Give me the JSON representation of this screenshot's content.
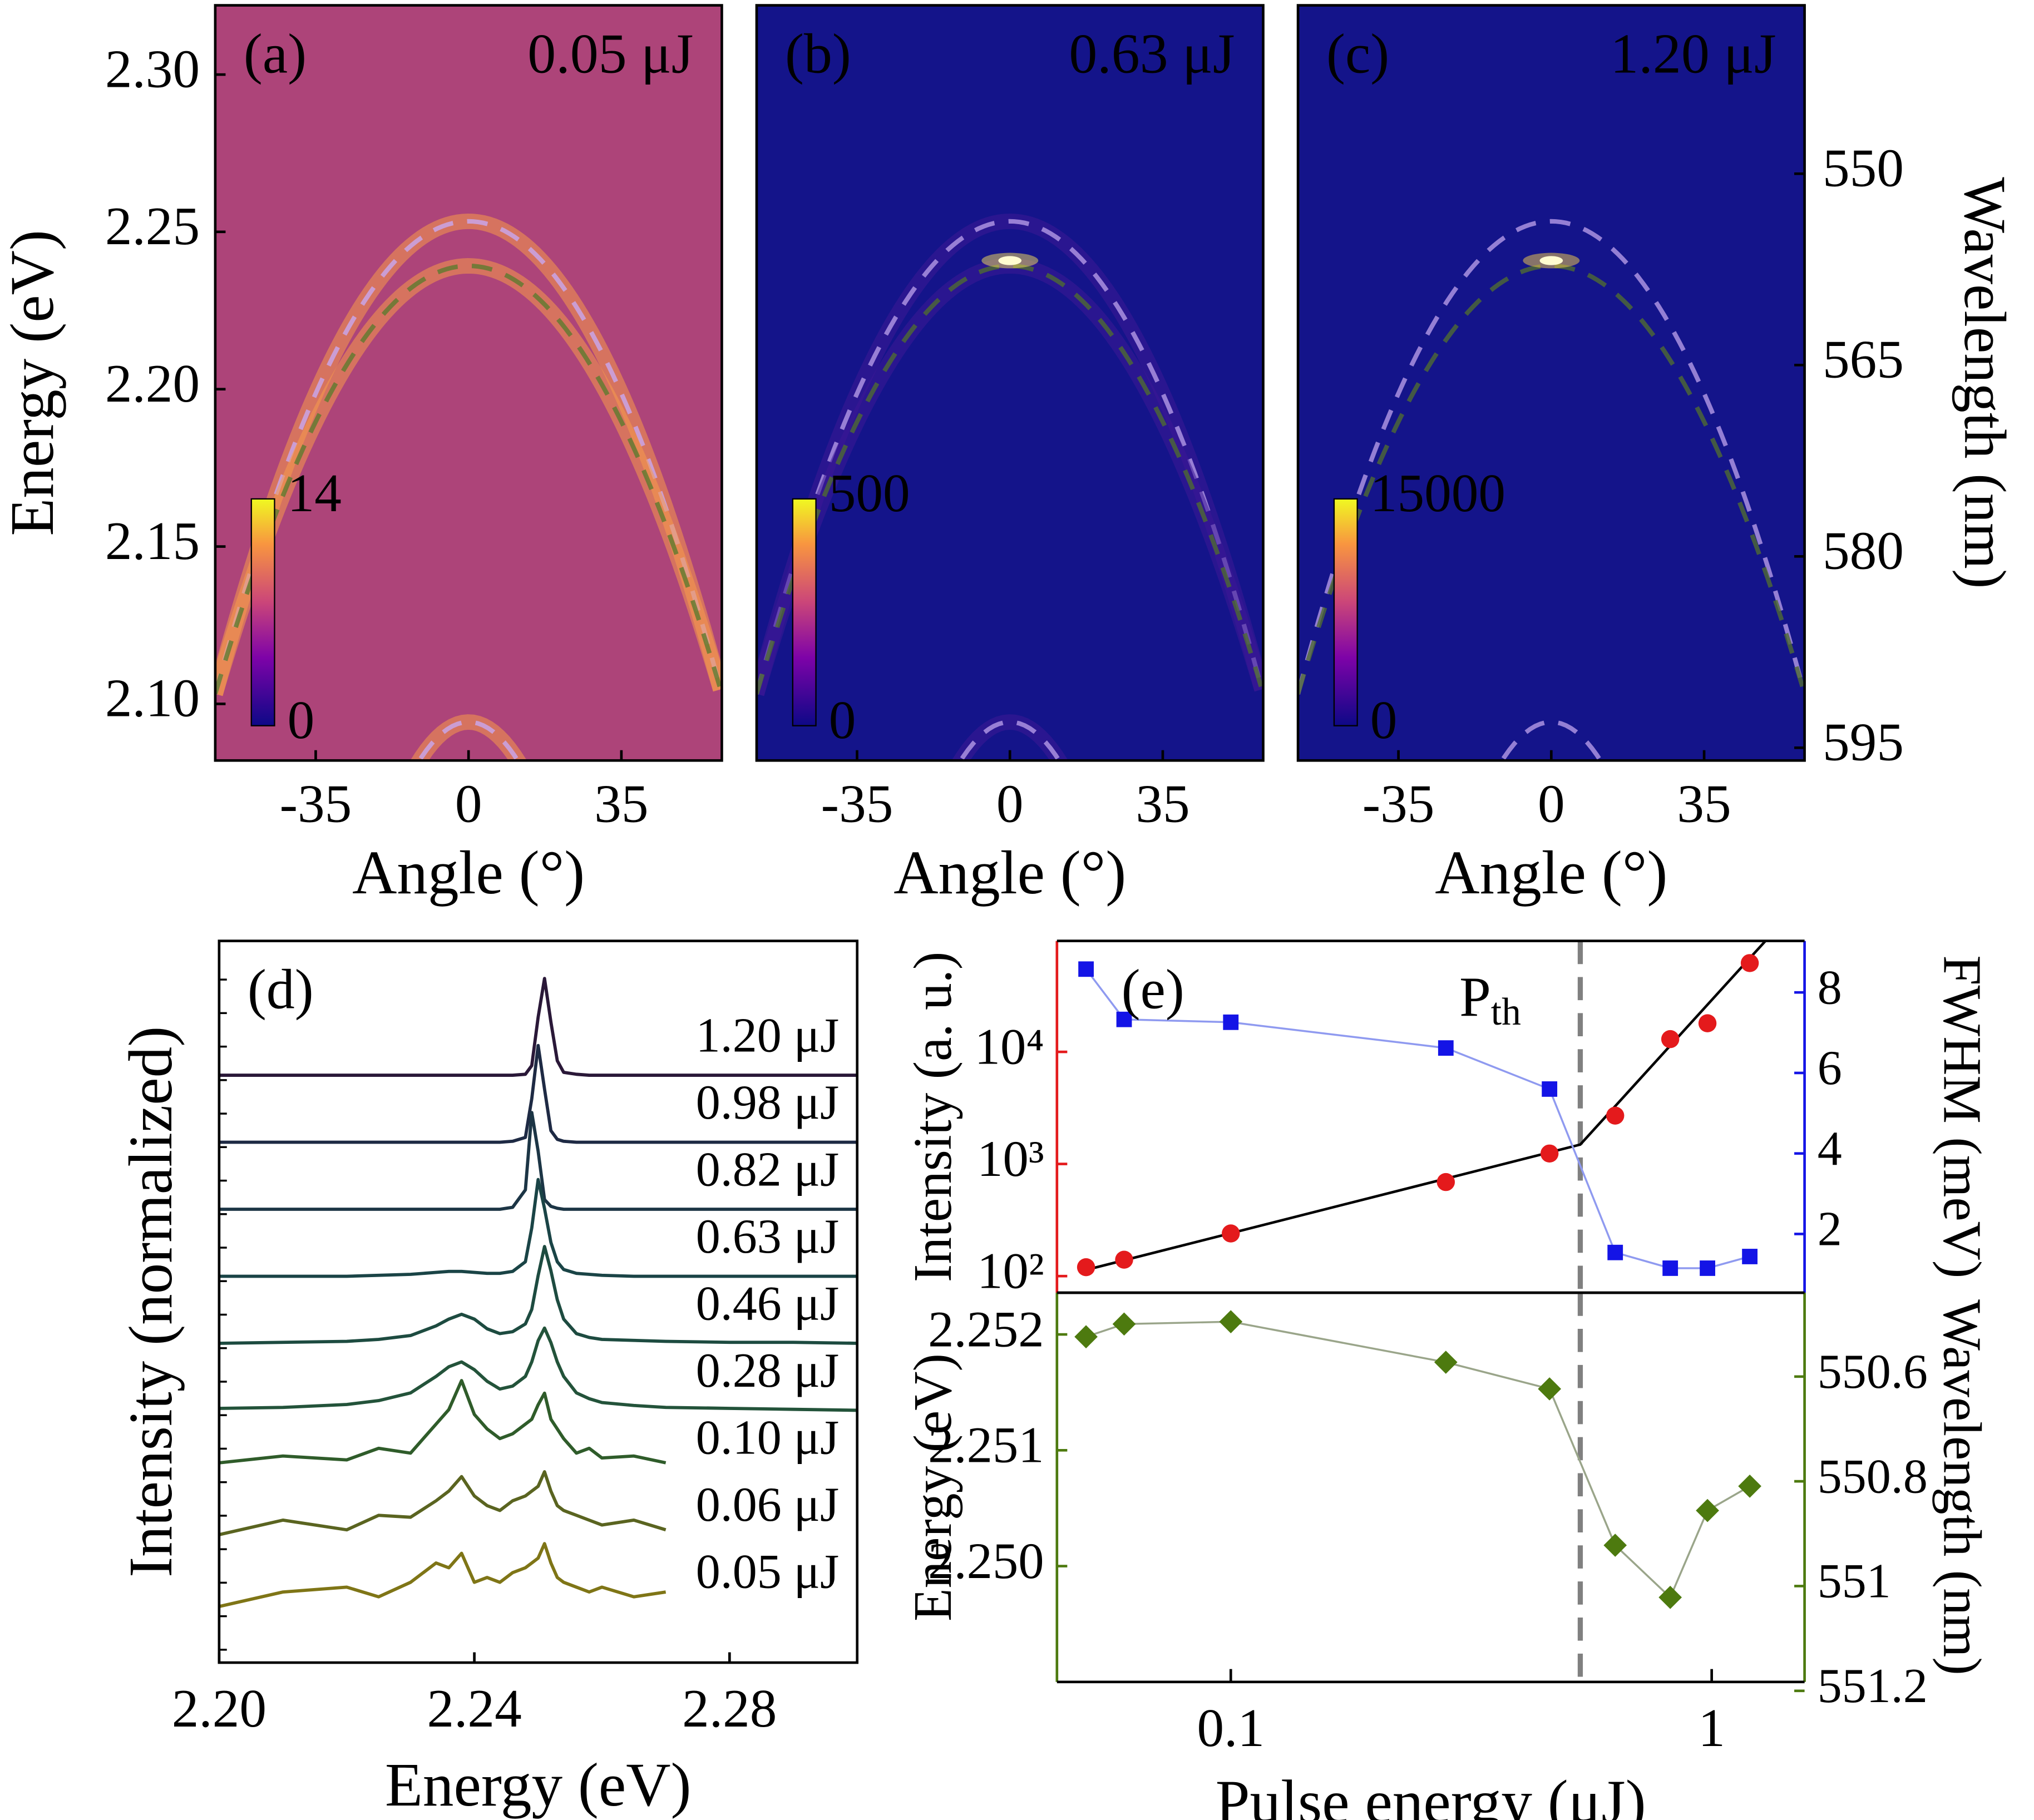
{
  "chart_data": [
    {
      "type": "heatmap",
      "panel_label": "(a)",
      "annotation": "0.05 μJ",
      "xlabel": "Angle (°)",
      "ylabel": "Energy (eV)",
      "xlim": [
        -58,
        58
      ],
      "xticks": [
        -35,
        0,
        35
      ],
      "ylim": [
        2.082,
        2.322
      ],
      "yticks": [
        {
          "value": 2.1,
          "label": "2.10"
        },
        {
          "value": 2.15,
          "label": "2.15"
        },
        {
          "value": 2.2,
          "label": "2.20"
        },
        {
          "value": 2.25,
          "label": "2.25"
        },
        {
          "value": 2.3,
          "label": "2.30"
        }
      ],
      "background": "#ad4479",
      "band_color": "#f79a4a",
      "curve_colors": [
        "#c8a8f0",
        "#5c7a2e"
      ],
      "colorbar": {
        "ticks": [
          0,
          14
        ]
      }
    },
    {
      "type": "heatmap",
      "panel_label": "(b)",
      "annotation": "0.63 μJ",
      "xlabel": "Angle (°)",
      "xlim": [
        -58,
        58
      ],
      "xticks": [
        -35,
        0,
        35
      ],
      "ylim": [
        2.082,
        2.322
      ],
      "background": "#14148a",
      "band_color": "#3c1896",
      "spot_color": "#f9e25a",
      "curve_colors": [
        "#b49ae6",
        "#4f6a32"
      ],
      "colorbar": {
        "ticks": [
          0,
          500
        ]
      }
    },
    {
      "type": "heatmap",
      "panel_label": "(c)",
      "annotation": "1.20 μJ",
      "xlabel": "Angle (°)",
      "y2label": "Wavelength (nm)",
      "xlim": [
        -58,
        58
      ],
      "xticks": [
        -35,
        0,
        35
      ],
      "ylim": [
        2.082,
        2.322
      ],
      "y2lim": [
        596.0,
        536.8
      ],
      "y2ticks": [
        550,
        565,
        580,
        595
      ],
      "background": "#14148a",
      "spot_color": "#f9d24a",
      "curve_colors": [
        "#b49ae6",
        "#4f6a32"
      ],
      "colorbar": {
        "ticks": [
          0,
          15000
        ]
      }
    },
    {
      "type": "line",
      "panel_label": "(d)",
      "xlabel": "Energy (eV)",
      "ylabel": "Intensity (normalized)",
      "xlim": [
        2.2,
        2.3
      ],
      "xticks": [
        {
          "value": 2.2,
          "label": "2.20"
        },
        {
          "value": 2.24,
          "label": "2.24"
        },
        {
          "value": 2.28,
          "label": "2.28"
        }
      ],
      "ylim": [
        -0.53,
        6.93
      ],
      "x": [
        2.2,
        2.21,
        2.22,
        2.225,
        2.23,
        2.234,
        2.236,
        2.238,
        2.24,
        2.242,
        2.244,
        2.246,
        2.248,
        2.249,
        2.25,
        2.251,
        2.252,
        2.253,
        2.254,
        2.256,
        2.258,
        2.26,
        2.265,
        2.27,
        2.28,
        2.29,
        2.3
      ],
      "series": [
        {
          "name": "1.20 μJ",
          "color": "#2a1838",
          "values": [
            0,
            0,
            0,
            0,
            0,
            0,
            0,
            0,
            0,
            0,
            0,
            0,
            0.01,
            0.1,
            0.6,
            1.0,
            0.55,
            0.15,
            0.03,
            0.01,
            0,
            0,
            0,
            0,
            0,
            0,
            0
          ]
        },
        {
          "name": "0.98 μJ",
          "color": "#1e2a44",
          "values": [
            0,
            0,
            0,
            0,
            0,
            0,
            0,
            0,
            0,
            0,
            0,
            0.01,
            0.05,
            0.45,
            1.0,
            0.55,
            0.12,
            0.03,
            0.01,
            0,
            0,
            0,
            0,
            0,
            0,
            0,
            0
          ]
        },
        {
          "name": "0.82 μJ",
          "color": "#1c3545",
          "values": [
            0,
            0,
            0,
            0,
            0,
            0,
            0,
            0,
            0,
            0,
            0,
            0.02,
            0.2,
            1.0,
            0.6,
            0.1,
            0.03,
            0.01,
            0,
            0,
            0,
            0,
            0,
            0,
            0,
            0,
            0
          ]
        },
        {
          "name": "0.63 μJ",
          "color": "#1a4446",
          "values": [
            0,
            0,
            0,
            0.01,
            0.02,
            0.04,
            0.05,
            0.05,
            0.04,
            0.03,
            0.03,
            0.05,
            0.15,
            0.5,
            1.0,
            0.7,
            0.35,
            0.15,
            0.07,
            0.03,
            0.02,
            0.01,
            0,
            0,
            0,
            0,
            0
          ]
        },
        {
          "name": "0.46 μJ",
          "color": "#1d4b40",
          "values": [
            0,
            0.01,
            0.02,
            0.04,
            0.08,
            0.18,
            0.25,
            0.3,
            0.25,
            0.15,
            0.1,
            0.12,
            0.2,
            0.35,
            0.7,
            1.0,
            0.75,
            0.45,
            0.25,
            0.1,
            0.06,
            0.04,
            0.03,
            0.02,
            0.01,
            0.01,
            0
          ]
        },
        {
          "name": "0.28 μJ",
          "color": "#23533a",
          "values": [
            0.02,
            0.03,
            0.06,
            0.1,
            0.18,
            0.35,
            0.45,
            0.5,
            0.42,
            0.3,
            0.22,
            0.25,
            0.35,
            0.5,
            0.72,
            0.85,
            0.7,
            0.5,
            0.35,
            0.18,
            0.12,
            0.08,
            0.05,
            0.03,
            0.02,
            0.01,
            0
          ]
        },
        {
          "name": "0.10 μJ",
          "color": "#2f5c2a",
          "values": [
            0.15,
            0.22,
            0.18,
            0.3,
            0.25,
            0.55,
            0.7,
            1.0,
            0.65,
            0.5,
            0.4,
            0.45,
            0.55,
            0.6,
            0.75,
            0.87,
            0.6,
            0.5,
            0.4,
            0.25,
            0.3,
            0.2,
            0.22,
            0.15,
            null,
            null,
            null
          ]
        },
        {
          "name": "0.06 μJ",
          "color": "#5a6420",
          "values": [
            0.1,
            0.25,
            0.15,
            0.3,
            0.28,
            0.45,
            0.55,
            0.7,
            0.5,
            0.4,
            0.35,
            0.45,
            0.5,
            0.55,
            0.6,
            0.75,
            0.55,
            0.4,
            0.35,
            0.3,
            0.25,
            0.2,
            0.25,
            0.15,
            null,
            null,
            null
          ]
        },
        {
          "name": "0.05 μJ",
          "color": "#7f7516",
          "values": [
            0.05,
            0.2,
            0.25,
            0.15,
            0.3,
            0.5,
            0.45,
            0.6,
            0.3,
            0.35,
            0.3,
            0.4,
            0.45,
            0.5,
            0.55,
            0.7,
            0.5,
            0.35,
            0.3,
            0.25,
            0.2,
            0.25,
            0.15,
            0.2,
            null,
            null,
            null
          ]
        }
      ]
    },
    {
      "type": "scatter",
      "panel_label": "(e)",
      "xlog": true,
      "ylog": true,
      "ylabel": "Intensity (a. u.)",
      "y2label": "FWHM (meV)",
      "xlim": [
        0.0435,
        1.56
      ],
      "ylim": [
        71,
        97700
      ],
      "yticks": [
        {
          "value": 100,
          "label": "10²"
        },
        {
          "value": 1000,
          "label": "10³"
        },
        {
          "value": 10000,
          "label": "10⁴"
        }
      ],
      "y2lim": [
        0.54,
        9.28
      ],
      "y2ticks": [
        2,
        4,
        6,
        8
      ],
      "x": [
        0.05,
        0.06,
        0.1,
        0.28,
        0.46,
        0.63,
        0.82,
        0.98,
        1.2
      ],
      "series": [
        {
          "color": "#e41a1c",
          "marker": "circle",
          "values": [
            120,
            140,
            240,
            690,
            1240,
            2700,
            13000,
            18000,
            62000
          ]
        },
        {
          "color": "#1414e6",
          "marker": "square",
          "axis": "y2",
          "line_color": "#8f9af0",
          "values": [
            8.58,
            7.33,
            7.26,
            6.62,
            5.6,
            1.54,
            1.15,
            1.15,
            1.44
          ]
        }
      ],
      "fit": {
        "color": "#000000",
        "x": [
          0.0486,
          0.533,
          1.3
        ],
        "y": [
          110,
          1490,
          100000
        ]
      },
      "threshold": {
        "value": 0.533,
        "color": "#808080",
        "label": "P",
        "label_sub": "th"
      }
    },
    {
      "type": "scatter",
      "xlog": true,
      "xlabel": "Pulse energy (μJ)",
      "ylabel": "Energy (eV)",
      "y2label": "Wavelength (nm)",
      "xlim": [
        0.0435,
        1.56
      ],
      "xticks": [
        0.1,
        1
      ],
      "ylim": [
        2.249,
        2.25236
      ],
      "yticks": [
        {
          "value": 2.25,
          "label": "2.250"
        },
        {
          "value": 2.251,
          "label": "2.251"
        },
        {
          "value": 2.252,
          "label": "2.252"
        }
      ],
      "y2lim": [
        551.183,
        550.44
      ],
      "y2ticks": [
        550.6,
        550.8,
        551,
        551.2
      ],
      "x": [
        0.05,
        0.06,
        0.1,
        0.28,
        0.46,
        0.63,
        0.82,
        0.98,
        1.2
      ],
      "series": [
        {
          "color": "#4d7a0f",
          "marker": "diamond",
          "line_color": "#9aa58a",
          "values": [
            2.25198,
            2.25209,
            2.25211,
            2.25176,
            2.25153,
            2.25018,
            2.24973,
            2.25048,
            2.25069
          ]
        }
      ],
      "threshold": {
        "value": 0.533,
        "color": "#808080"
      }
    }
  ]
}
